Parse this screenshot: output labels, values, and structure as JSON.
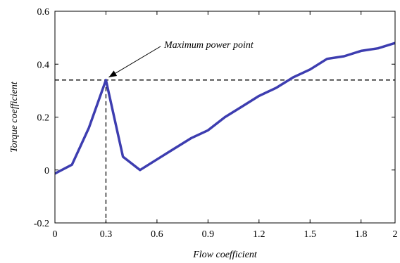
{
  "chart_data": {
    "type": "line",
    "xlabel": "Flow coefficient",
    "ylabel": "Torque coefficient",
    "xlim": [
      0,
      2
    ],
    "ylim": [
      -0.2,
      0.6
    ],
    "xticks": [
      0,
      0.3,
      0.6,
      0.9,
      1.2,
      1.5,
      1.8,
      2
    ],
    "xtick_labels": [
      "0",
      "0.3",
      "0.6",
      "0.9",
      "1.2",
      "1.5",
      "1.8",
      "2"
    ],
    "yticks": [
      -0.2,
      0,
      0.2,
      0.4,
      0.6
    ],
    "ytick_labels": [
      "-0.2",
      "0",
      "0.2",
      "0.4",
      "0.6"
    ],
    "grid": false,
    "series": [
      {
        "color": "#3d3db0",
        "x": [
          -0.02,
          0.1,
          0.2,
          0.3,
          0.4,
          0.5,
          0.6,
          0.7,
          0.8,
          0.9,
          1.0,
          1.1,
          1.2,
          1.3,
          1.4,
          1.5,
          1.6,
          1.7,
          1.8,
          1.9,
          2.0
        ],
        "y": [
          -0.02,
          0.02,
          0.16,
          0.34,
          0.05,
          0.0,
          0.04,
          0.08,
          0.12,
          0.15,
          0.2,
          0.24,
          0.28,
          0.31,
          0.35,
          0.38,
          0.42,
          0.43,
          0.45,
          0.46,
          0.48
        ]
      }
    ],
    "reference_lines": {
      "horizontal_y": 0.34,
      "vertical_x": 0.3,
      "style": "dashed",
      "color": "#000000"
    },
    "annotations": [
      {
        "text": "Maximum power point",
        "point_x": 0.3,
        "point_y": 0.34
      }
    ]
  }
}
